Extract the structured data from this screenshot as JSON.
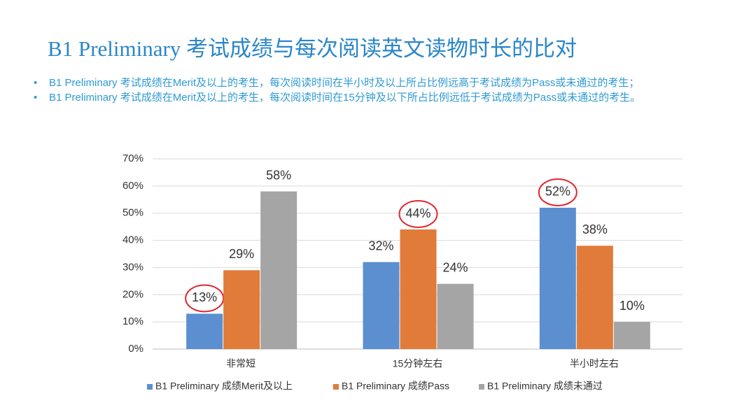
{
  "title": "B1 Preliminary 考试成绩与每次阅读英文读物时长的比对",
  "bullets": [
    "B1 Preliminary 考试成绩在Merit及以上的考生，每次阅读时间在半小时及以上所占比例远高于考试成绩为Pass或未通过的考生；",
    "B1 Preliminary 考试成绩在Merit及以上的考生，每次阅读时间在15分钟及以下所占比例远低于考试成绩为Pass或未通过的考生。"
  ],
  "chart_data": {
    "type": "bar",
    "categories": [
      "非常短",
      "15分钟左右",
      "半小时左右"
    ],
    "series": [
      {
        "name": "B1 Preliminary 成绩Merit及以上",
        "color": "#5b8fd0",
        "values": [
          13,
          32,
          52
        ],
        "value_labels": [
          "13%",
          "32%",
          "52%"
        ],
        "circled": [
          true,
          false,
          true
        ]
      },
      {
        "name": "B1 Preliminary 成绩Pass",
        "color": "#e07b39",
        "values": [
          29,
          44,
          38
        ],
        "value_labels": [
          "29%",
          "44%",
          "38%"
        ],
        "circled": [
          false,
          true,
          false
        ]
      },
      {
        "name": "B1 Preliminary 成绩未通过",
        "color": "#a5a5a5",
        "values": [
          58,
          24,
          10
        ],
        "value_labels": [
          "58%",
          "24%",
          "10%"
        ],
        "circled": [
          false,
          false,
          false
        ]
      }
    ],
    "ylim": [
      0,
      70
    ],
    "yticks": [
      {
        "value": 0,
        "label": "0%"
      },
      {
        "value": 10,
        "label": "10%"
      },
      {
        "value": 20,
        "label": "20%"
      },
      {
        "value": 30,
        "label": "30%"
      },
      {
        "value": 40,
        "label": "40%"
      },
      {
        "value": 50,
        "label": "50%"
      },
      {
        "value": 60,
        "label": "60%"
      },
      {
        "value": 70,
        "label": "70%"
      }
    ],
    "grid": true,
    "legend": "bottom"
  }
}
